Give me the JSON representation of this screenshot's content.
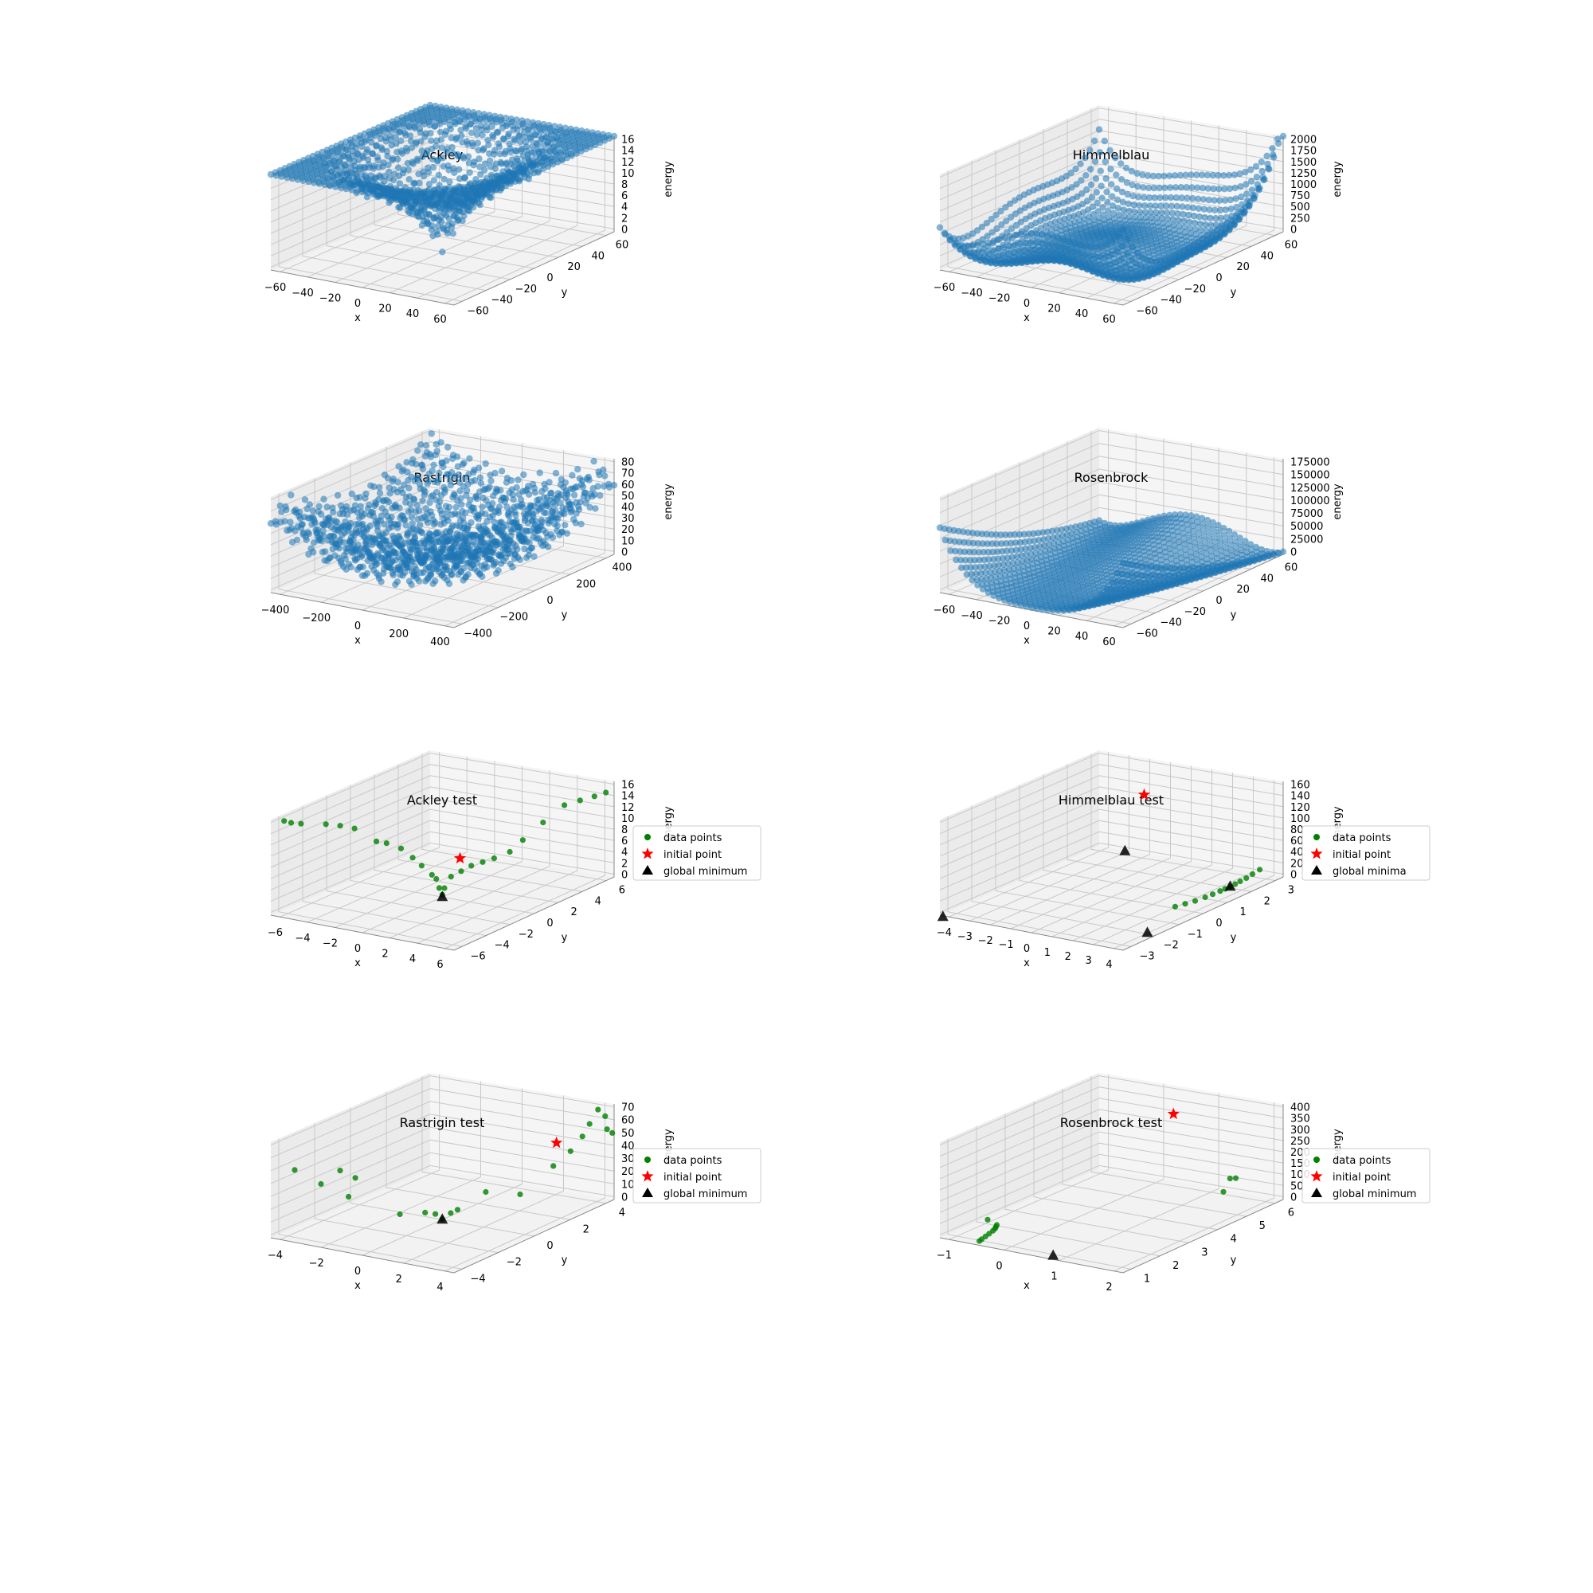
{
  "chart_data": [
    {
      "type": "scatter",
      "title": "Ackley",
      "xlabel": "x",
      "ylabel": "y",
      "zlabel": "energy",
      "xticks": [
        "−60",
        "−40",
        "−20",
        "0",
        "20",
        "40",
        "60"
      ],
      "yticks": [
        "−60",
        "−40",
        "−20",
        "0",
        "20",
        "40",
        "60"
      ],
      "zticks": [
        "0",
        "2",
        "4",
        "6",
        "8",
        "10",
        "12",
        "14",
        "16"
      ],
      "xlim": [
        -60,
        60
      ],
      "ylim": [
        -60,
        60
      ],
      "zlim": [
        0,
        16
      ],
      "surface": "ackley",
      "series": [
        {
          "marker": "circle",
          "color": "#1f77b4"
        }
      ]
    },
    {
      "type": "scatter",
      "title": "Himmelblau",
      "xlabel": "x",
      "ylabel": "y",
      "zlabel": "energy",
      "xticks": [
        "−60",
        "−40",
        "−20",
        "0",
        "20",
        "40",
        "60"
      ],
      "yticks": [
        "−60",
        "−40",
        "−20",
        "0",
        "20",
        "40",
        "60"
      ],
      "zticks": [
        "0",
        "250",
        "500",
        "750",
        "1000",
        "1250",
        "1500",
        "1750",
        "2000"
      ],
      "xlim": [
        -60,
        60
      ],
      "ylim": [
        -60,
        60
      ],
      "zlim": [
        0,
        2000
      ],
      "surface": "himmelblau",
      "series": [
        {
          "marker": "circle",
          "color": "#1f77b4"
        }
      ]
    },
    {
      "type": "scatter",
      "title": "Rastrigin",
      "xlabel": "x",
      "ylabel": "y",
      "zlabel": "energy",
      "xticks": [
        "−400",
        "−200",
        "0",
        "200",
        "400"
      ],
      "yticks": [
        "−400",
        "−200",
        "0",
        "200",
        "400"
      ],
      "zticks": [
        "0",
        "10",
        "20",
        "30",
        "40",
        "50",
        "60",
        "70",
        "80"
      ],
      "xlim": [
        -500,
        500
      ],
      "ylim": [
        -500,
        500
      ],
      "zlim": [
        0,
        80
      ],
      "surface": "rastrigin",
      "series": [
        {
          "marker": "circle",
          "color": "#1f77b4"
        }
      ]
    },
    {
      "type": "scatter",
      "title": "Rosenbrock",
      "xlabel": "x",
      "ylabel": "y",
      "zlabel": "energy",
      "xticks": [
        "−60",
        "−40",
        "−20",
        "0",
        "20",
        "40",
        "60"
      ],
      "yticks": [
        "−60",
        "−40",
        "−20",
        "0",
        "20",
        "40",
        "60"
      ],
      "zticks": [
        "0",
        "25000",
        "50000",
        "75000",
        "100000",
        "125000",
        "150000",
        "175000"
      ],
      "xlim": [
        -60,
        60
      ],
      "ylim": [
        -60,
        60
      ],
      "zlim": [
        0,
        175000
      ],
      "surface": "rosenbrock",
      "series": [
        {
          "marker": "circle",
          "color": "#1f77b4"
        }
      ]
    },
    {
      "type": "scatter",
      "title": "Ackley test",
      "xlabel": "x",
      "ylabel": "y",
      "zlabel": "energy",
      "xticks": [
        "−6",
        "−4",
        "−2",
        "0",
        "2",
        "4",
        "6"
      ],
      "yticks": [
        "−6",
        "−4",
        "−2",
        "0",
        "2",
        "4",
        "6"
      ],
      "zticks": [
        "0",
        "2",
        "4",
        "6",
        "8",
        "10",
        "12",
        "14",
        "16"
      ],
      "xlim": [
        -6,
        6
      ],
      "ylim": [
        -6,
        6
      ],
      "zlim": [
        0,
        16
      ],
      "legend": "top-right",
      "series": [
        {
          "name": "data points",
          "marker": "circle",
          "color": "#008000",
          "points": [
            [
              -6.0,
              -5.0,
              14.8
            ],
            [
              -5.8,
              -4.7,
              14.3
            ],
            [
              -5.5,
              -4.3,
              13.9
            ],
            [
              -5.0,
              -3.0,
              12.8
            ],
            [
              -4.5,
              -2.5,
              12.3
            ],
            [
              -4.0,
              -2.0,
              11.6
            ],
            [
              -3.0,
              -1.5,
              9.4
            ],
            [
              -2.6,
              -1.2,
              9.0
            ],
            [
              -2.0,
              -0.8,
              8.0
            ],
            [
              -1.5,
              -0.5,
              6.4
            ],
            [
              -1.0,
              -0.4,
              5.2
            ],
            [
              -0.5,
              -0.2,
              3.7
            ],
            [
              -0.3,
              -0.1,
              3.0
            ],
            [
              -0.15,
              -0.05,
              1.5
            ],
            [
              0,
              0,
              0.4
            ],
            [
              0.1,
              0.05,
              1.5
            ],
            [
              0.4,
              0.2,
              3.4
            ],
            [
              0.8,
              0.5,
              4.2
            ],
            [
              1.2,
              0.8,
              5.0
            ],
            [
              1.6,
              1.2,
              5.4
            ],
            [
              2.0,
              1.6,
              5.8
            ],
            [
              2.5,
              2.2,
              6.5
            ],
            [
              3.0,
              2.6,
              8.3
            ],
            [
              3.8,
              3.2,
              11.0
            ],
            [
              4.5,
              4.0,
              13.4
            ],
            [
              5.0,
              4.6,
              13.8
            ],
            [
              5.5,
              5.1,
              14.2
            ],
            [
              5.9,
              5.5,
              14.6
            ]
          ]
        },
        {
          "name": "initial point",
          "marker": "star",
          "color": "#ff0000",
          "points": [
            [
              0.9,
              0.3,
              6.6
            ]
          ]
        },
        {
          "name": "global minimum",
          "marker": "triangle",
          "color": "#000000",
          "points": [
            [
              0,
              0,
              0
            ]
          ]
        }
      ]
    },
    {
      "type": "scatter",
      "title": "Himmelblau test",
      "xlabel": "x",
      "ylabel": "y",
      "zlabel": "energy",
      "xticks": [
        "−4",
        "−3",
        "−2",
        "−1",
        "0",
        "1",
        "2",
        "3",
        "4"
      ],
      "yticks": [
        "−3",
        "−2",
        "−1",
        "0",
        "1",
        "2",
        "3"
      ],
      "zticks": [
        "0",
        "20",
        "40",
        "60",
        "80",
        "100",
        "120",
        "140",
        "160"
      ],
      "xlim": [
        -4,
        4
      ],
      "ylim": [
        -3.2,
        3.2
      ],
      "zlim": [
        0,
        170
      ],
      "legend": "top-right",
      "series": [
        {
          "name": "data points",
          "marker": "circle",
          "color": "#008000",
          "points": [
            [
              3.0,
              -0.2,
              9.0
            ],
            [
              3.0,
              0.2,
              6.0
            ],
            [
              3.0,
              0.6,
              3.0
            ],
            [
              3.0,
              1.0,
              1.5
            ],
            [
              3.0,
              1.3,
              0.8
            ],
            [
              3.0,
              1.6,
              0.4
            ],
            [
              3.0,
              1.8,
              0.3
            ],
            [
              3.0,
              2.0,
              0.2
            ],
            [
              3.0,
              2.2,
              0.5
            ],
            [
              3.0,
              2.4,
              1.5
            ],
            [
              3.05,
              2.6,
              3.5
            ],
            [
              3.1,
              2.8,
              7.0
            ],
            [
              3.2,
              3.0,
              11.5
            ]
          ]
        },
        {
          "name": "initial point",
          "marker": "star",
          "color": "#ff0000",
          "points": [
            [
              -1.5,
              2.7,
              118
            ]
          ]
        },
        {
          "name": "global minima",
          "marker": "triangle",
          "color": "#000000",
          "points": [
            [
              3.0,
              2.0,
              0
            ],
            [
              -2.805,
              3.131,
              0
            ],
            [
              -3.779,
              -3.283,
              0
            ],
            [
              3.584,
              -1.848,
              0
            ]
          ]
        }
      ]
    },
    {
      "type": "scatter",
      "title": "Rastrigin test",
      "xlabel": "x",
      "ylabel": "y",
      "zlabel": "energy",
      "xticks": [
        "−4",
        "−2",
        "0",
        "2",
        "4"
      ],
      "yticks": [
        "−4",
        "−2",
        "0",
        "2",
        "4"
      ],
      "zticks": [
        "0",
        "10",
        "20",
        "30",
        "40",
        "50",
        "60",
        "70"
      ],
      "xlim": [
        -5,
        5
      ],
      "ylim": [
        -5,
        5
      ],
      "zlim": [
        0,
        75
      ],
      "legend": "top-right",
      "series": [
        {
          "name": "data points",
          "marker": "circle",
          "color": "#008000",
          "points": [
            [
              -5.0,
              -3.5,
              45
            ],
            [
              -4.0,
              -3.0,
              34
            ],
            [
              -4.0,
              -1.8,
              38
            ],
            [
              -3.0,
              -2.0,
              36
            ],
            [
              -2.5,
              -3.0,
              28
            ],
            [
              -1.0,
              -1.5,
              10
            ],
            [
              -0.5,
              -0.5,
              7
            ],
            [
              -0.2,
              -0.2,
              5
            ],
            [
              0,
              0,
              0.5
            ],
            [
              0.2,
              0.3,
              4
            ],
            [
              0.4,
              0.5,
              6
            ],
            [
              1.5,
              1.0,
              20
            ],
            [
              2.5,
              2.0,
              15
            ],
            [
              3.0,
              3.5,
              30
            ],
            [
              3.5,
              4.0,
              40
            ],
            [
              3.8,
              4.4,
              50
            ],
            [
              4.1,
              4.5,
              60
            ],
            [
              4.3,
              4.8,
              70
            ],
            [
              4.6,
              4.9,
              65
            ],
            [
              4.7,
              4.9,
              55
            ],
            [
              4.9,
              5.0,
              52
            ]
          ]
        },
        {
          "name": "initial point",
          "marker": "star",
          "color": "#ff0000",
          "points": [
            [
              3.0,
              3.7,
              47
            ]
          ]
        },
        {
          "name": "global minimum",
          "marker": "triangle",
          "color": "#000000",
          "points": [
            [
              0,
              0,
              0
            ]
          ]
        }
      ]
    },
    {
      "type": "scatter",
      "title": "Rosenbrock test",
      "xlabel": "x",
      "ylabel": "y",
      "zlabel": "energy",
      "xticks": [
        "−1",
        "0",
        "1",
        "2"
      ],
      "yticks": [
        "1",
        "2",
        "3",
        "4",
        "5",
        "6"
      ],
      "zticks": [
        "0",
        "50",
        "100",
        "150",
        "200",
        "250",
        "300",
        "350",
        "400"
      ],
      "xlim": [
        -1.7,
        2.9
      ],
      "ylim": [
        0.8,
        6.4
      ],
      "zlim": [
        0,
        420
      ],
      "legend": "top-right",
      "series": [
        {
          "name": "data points",
          "marker": "circle",
          "color": "#008000",
          "points": [
            [
              -1.5,
              2.2,
              10
            ],
            [
              -1.2,
              2.1,
              2
            ],
            [
              -1.15,
              2.0,
              0.8
            ],
            [
              -1.1,
              1.9,
              0.4
            ],
            [
              -1.05,
              1.75,
              0.2
            ],
            [
              -1.0,
              1.55,
              0.2
            ],
            [
              -0.95,
              1.35,
              0.4
            ],
            [
              -0.9,
              1.15,
              0.8
            ],
            [
              -0.85,
              1.0,
              3
            ],
            [
              2.0,
              6.0,
              90
            ],
            [
              2.0,
              5.8,
              100
            ],
            [
              2.05,
              5.5,
              60
            ]
          ]
        },
        {
          "name": "initial point",
          "marker": "star",
          "color": "#ff0000",
          "points": [
            [
              0.8,
              5.5,
              364
            ]
          ]
        },
        {
          "name": "global minimum",
          "marker": "triangle",
          "color": "#000000",
          "points": [
            [
              1,
              1,
              0
            ]
          ]
        }
      ]
    }
  ]
}
